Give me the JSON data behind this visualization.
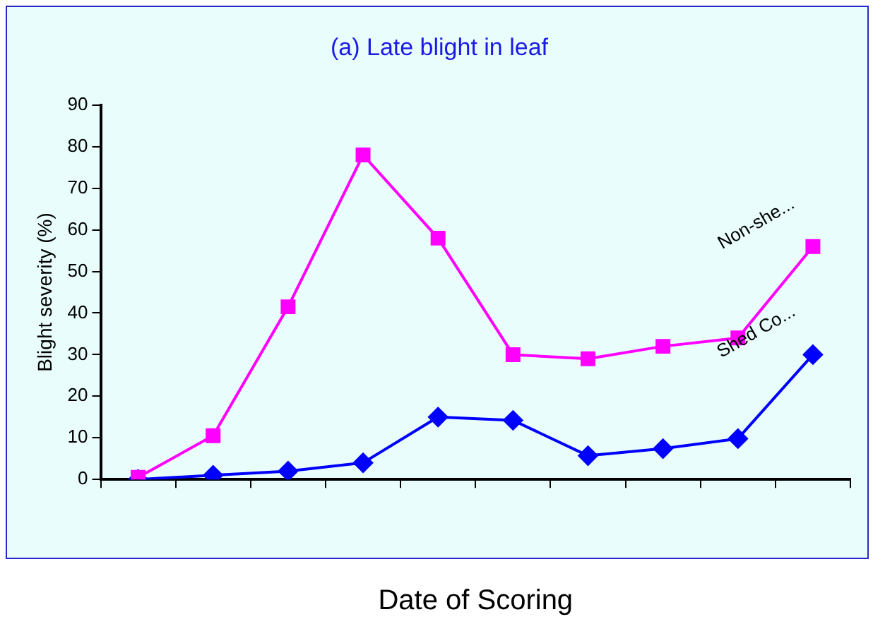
{
  "chart_data": {
    "type": "line",
    "title": "(a) Late blight in leaf",
    "ylabel": "Blight severity (%)",
    "xlabel": "Date of Scoring",
    "categories": [
      null,
      null,
      null,
      null,
      null,
      null,
      null,
      null,
      null,
      null
    ],
    "series": [
      {
        "name": "Non-she...",
        "color": "#ff00ff",
        "marker": "square",
        "values": [
          0.5,
          10.5,
          41.5,
          78,
          58,
          30,
          29,
          32,
          34,
          56
        ]
      },
      {
        "name": "Shed Co...",
        "color": "#0000ff",
        "marker": "diamond",
        "values": [
          0,
          1,
          2,
          4,
          15,
          14.2,
          5.7,
          7.4,
          9.8,
          30
        ]
      }
    ],
    "ylim": [
      0,
      90
    ],
    "yticks": [
      0,
      10,
      20,
      30,
      40,
      50,
      60,
      70,
      80,
      90
    ],
    "grid": false,
    "legend": false,
    "line_style": "solid"
  }
}
